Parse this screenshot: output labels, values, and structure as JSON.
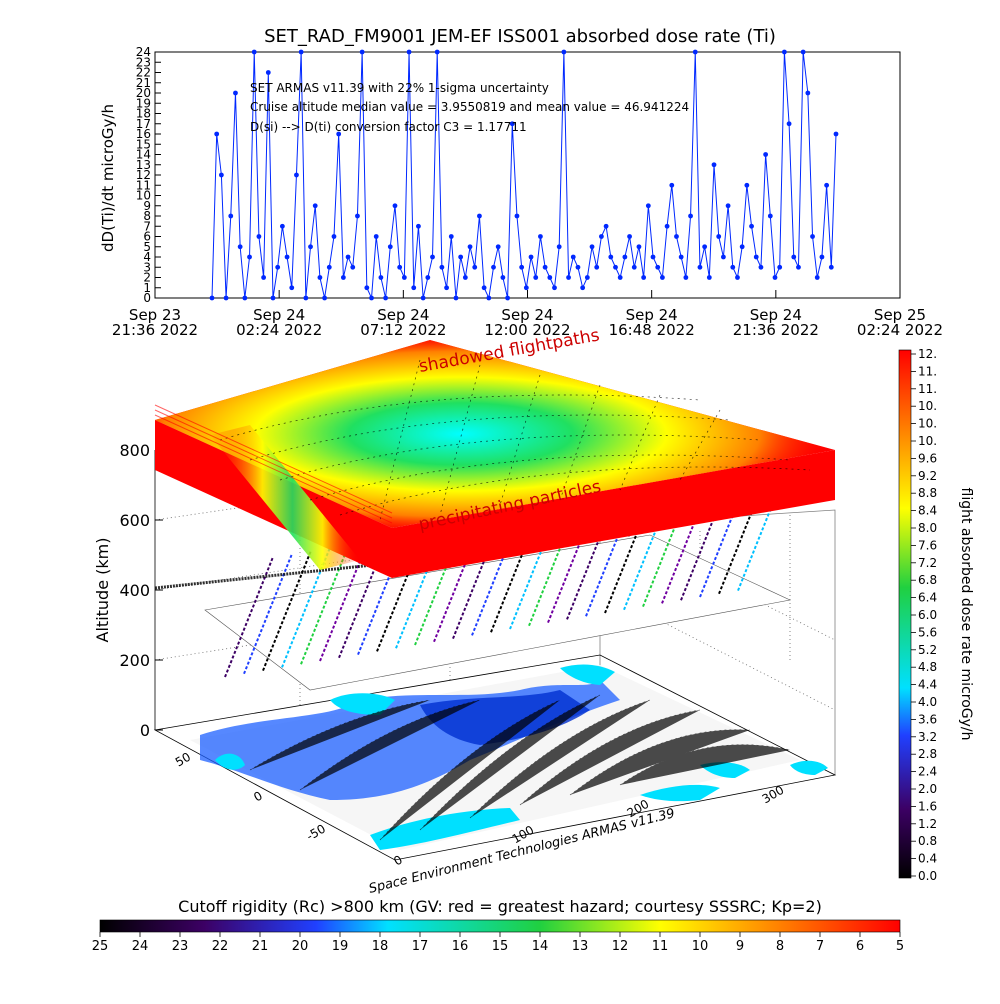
{
  "chart_data": [
    {
      "type": "line",
      "title": "SET_RAD_FM9001  JEM-EF ISS001 absorbed dose rate (Ti)",
      "ylabel": "dD(Ti)/dt microGy/h",
      "ylim": [
        0,
        24
      ],
      "ytick_labels": [
        "0",
        "1",
        "2",
        "3",
        "4",
        "5",
        "6",
        "7",
        "8",
        "9",
        "10",
        "11",
        "12",
        "13",
        "14",
        "15",
        "16",
        "17",
        "18",
        "19",
        "20",
        "21",
        "22",
        "23",
        "24"
      ],
      "xtick_labels": [
        [
          "Sep 23",
          "21:36 2022"
        ],
        [
          "Sep 24",
          "02:24 2022"
        ],
        [
          "Sep 24",
          "07:12 2022"
        ],
        [
          "Sep 24",
          "12:00 2022"
        ],
        [
          "Sep 24",
          "16:48 2022"
        ],
        [
          "Sep 24",
          "21:36 2022"
        ],
        [
          "Sep 25",
          "02:24 2022"
        ]
      ],
      "annotations": [
        "SET ARMAS v11.39 with 22% 1-sigma uncertainty",
        "Cruise altitude median value = 3.9550819 and mean value = 46.941224",
        "D(si) --> D(ti) conversion factor C3 = 1.17711"
      ],
      "series": [
        {
          "values": [
            0,
            16,
            12,
            0,
            8,
            20,
            5,
            0,
            4,
            24,
            6,
            2,
            22,
            0,
            3,
            7,
            4,
            1,
            12,
            24,
            0,
            5,
            9,
            2,
            0,
            3,
            6,
            16,
            2,
            4,
            3,
            8,
            24,
            1,
            0,
            6,
            2,
            0,
            5,
            9,
            3,
            2,
            24,
            1,
            7,
            0,
            2,
            4,
            24,
            3,
            1,
            6,
            0,
            4,
            2,
            5,
            3,
            8,
            1,
            0,
            3,
            5,
            2,
            0,
            17,
            8,
            3,
            1,
            4,
            2,
            6,
            3,
            2,
            1,
            5,
            24,
            2,
            4,
            3,
            1,
            2,
            5,
            3,
            6,
            7,
            4,
            3,
            2,
            4,
            6,
            3,
            5,
            2,
            9,
            4,
            3,
            2,
            7,
            11,
            6,
            4,
            2,
            8,
            24,
            3,
            5,
            2,
            13,
            6,
            4,
            9,
            3,
            2,
            5,
            11,
            7,
            4,
            3,
            14,
            8,
            2,
            3,
            24,
            17,
            4,
            3,
            24,
            20,
            6,
            2,
            4,
            11,
            3,
            16
          ]
        }
      ]
    },
    {
      "type": "heatmap",
      "zlabel": "Altitude (km)",
      "zlim": [
        0,
        800
      ],
      "ztick_labels": [
        "0",
        "200",
        "400",
        "600",
        "800"
      ],
      "lon_tick_labels": [
        "0",
        "100",
        "200",
        "300"
      ],
      "lat_tick_labels": [
        "-50",
        "0",
        "50"
      ],
      "layer_labels": [
        "shadowed flightpaths",
        "precipitating particles"
      ],
      "credit": "Space Environment Technologies ARMAS v11.39"
    },
    {
      "type": "heatmap",
      "colorbar_label": "flight absorbed dose rate microGy/h",
      "colorbar_ticks": [
        "0.0",
        "0.4",
        "0.8",
        "1.2",
        "1.6",
        "2.0",
        "2.4",
        "2.8",
        "3.2",
        "3.6",
        "4.0",
        "4.4",
        "4.8",
        "5.2",
        "5.6",
        "6.0",
        "6.4",
        "6.8",
        "7.2",
        "7.6",
        "8.0",
        "8.4",
        "8.8",
        "9.2",
        "9.6",
        "10.",
        "10.",
        "10.",
        "11.",
        "11.",
        "12."
      ],
      "colorscale": [
        "#000000",
        "#3c0064",
        "#2040ff",
        "#00e0ff",
        "#20d040",
        "#ffff00",
        "#ff8000",
        "#ff0000"
      ]
    },
    {
      "type": "heatmap",
      "colorbar_label": "Cutoff rigidity (Rc) >800 km (GV: red = greatest hazard; courtesy SSSRC; Kp=2)",
      "colorbar_ticks": [
        "25",
        "24",
        "23",
        "22",
        "21",
        "20",
        "19",
        "18",
        "17",
        "16",
        "15",
        "14",
        "13",
        "12",
        "11",
        "10",
        "9",
        "8",
        "7",
        "6",
        "5"
      ],
      "colorscale": [
        "#000000",
        "#3c0064",
        "#2040ff",
        "#00e0ff",
        "#20d040",
        "#ffff00",
        "#ff8000",
        "#ff0000"
      ]
    }
  ]
}
